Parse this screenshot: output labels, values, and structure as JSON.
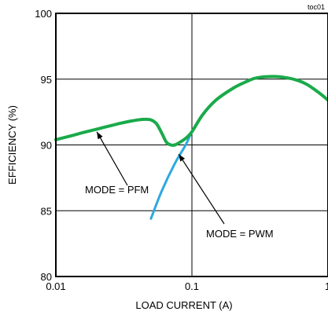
{
  "chart_data": {
    "type": "line",
    "id_label": "toc01",
    "title": "",
    "xlabel": "LOAD CURRENT (A)",
    "ylabel": "EFFICIENCY (%)",
    "x_scale": "log",
    "xlim": [
      0.01,
      1
    ],
    "ylim": [
      80,
      100
    ],
    "x_ticks": [
      {
        "value": 0.01,
        "label": "0.01"
      },
      {
        "value": 0.1,
        "label": "0.1"
      },
      {
        "value": 1,
        "label": "1"
      }
    ],
    "y_ticks": [
      {
        "value": 80,
        "label": "80"
      },
      {
        "value": 85,
        "label": "85"
      },
      {
        "value": 90,
        "label": "90"
      },
      {
        "value": 95,
        "label": "95"
      },
      {
        "value": 100,
        "label": "100"
      }
    ],
    "grid": true,
    "series": [
      {
        "color": "#2ea8e0",
        "points": [
          [
            0.05,
            84.4
          ],
          [
            0.06,
            86.5
          ],
          [
            0.075,
            88.6
          ],
          [
            0.09,
            90.0
          ],
          [
            0.1,
            91.0
          ],
          [
            0.12,
            92.3
          ],
          [
            0.15,
            93.4
          ],
          [
            0.2,
            94.3
          ],
          [
            0.25,
            94.8
          ],
          [
            0.3,
            95.1
          ],
          [
            0.4,
            95.2
          ],
          [
            0.5,
            95.1
          ],
          [
            0.6,
            94.9
          ],
          [
            0.7,
            94.6
          ],
          [
            0.8,
            94.2
          ],
          [
            0.9,
            93.8
          ],
          [
            1.0,
            93.4
          ]
        ]
      },
      {
        "color": "#1aaa4a",
        "points": [
          [
            0.01,
            90.4
          ],
          [
            0.013,
            90.7
          ],
          [
            0.016,
            90.95
          ],
          [
            0.02,
            91.2
          ],
          [
            0.025,
            91.45
          ],
          [
            0.03,
            91.65
          ],
          [
            0.035,
            91.8
          ],
          [
            0.04,
            91.9
          ],
          [
            0.045,
            91.95
          ],
          [
            0.05,
            91.9
          ],
          [
            0.055,
            91.6
          ],
          [
            0.06,
            90.9
          ],
          [
            0.065,
            90.2
          ],
          [
            0.07,
            90.0
          ],
          [
            0.075,
            90.0
          ],
          [
            0.08,
            90.15
          ],
          [
            0.09,
            90.5
          ],
          [
            0.1,
            91.0
          ],
          [
            0.12,
            92.3
          ],
          [
            0.15,
            93.4
          ],
          [
            0.2,
            94.3
          ],
          [
            0.25,
            94.8
          ],
          [
            0.3,
            95.1
          ],
          [
            0.4,
            95.2
          ],
          [
            0.5,
            95.1
          ],
          [
            0.6,
            94.9
          ],
          [
            0.7,
            94.6
          ],
          [
            0.8,
            94.2
          ],
          [
            0.9,
            93.8
          ],
          [
            1.0,
            93.4
          ]
        ]
      }
    ],
    "annotations": [
      {
        "text": "MODE = PFM",
        "arrow_to": [
          0.02,
          91.0
        ]
      },
      {
        "text": "MODE = PWM",
        "arrow_to": [
          0.08,
          89.3
        ]
      }
    ]
  }
}
